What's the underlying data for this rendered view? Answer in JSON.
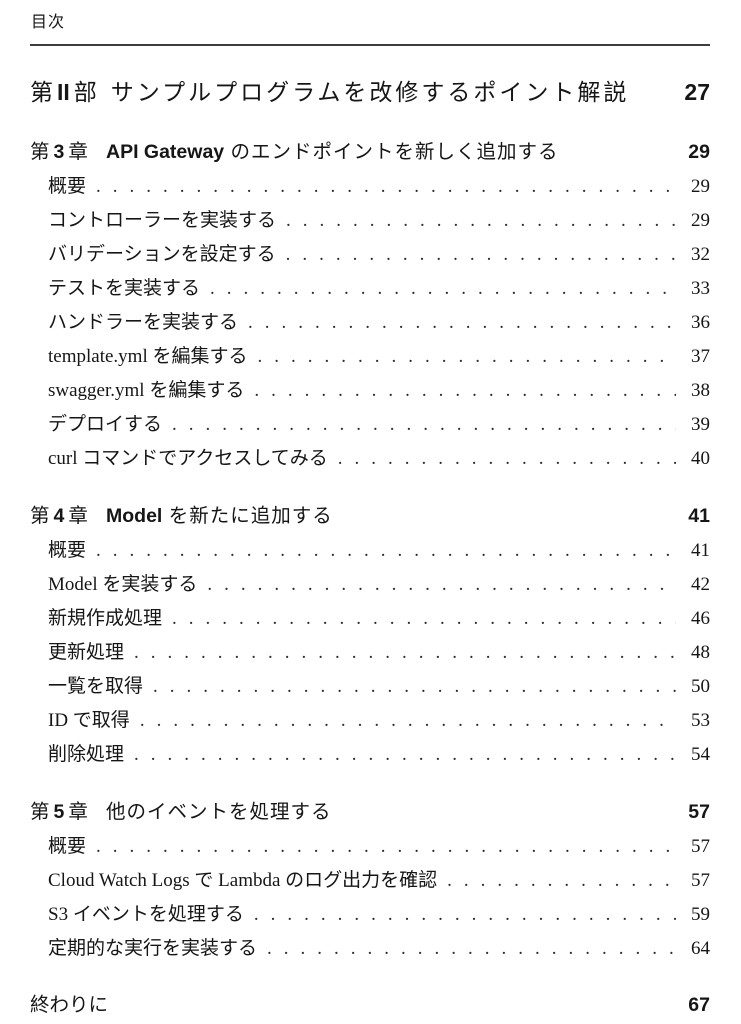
{
  "page": {
    "header": "目次"
  },
  "toc": {
    "part": {
      "label_pre": "第",
      "label_num": "II",
      "label_post": "部",
      "title": "サンプルプログラムを改修するポイント解説",
      "page": "27"
    },
    "chapters": [
      {
        "label_pre": "第",
        "label_num": "3",
        "label_post": "章",
        "title_strong": "API Gateway",
        "title_text": " のエンドポイントを新しく追加する",
        "page": "29",
        "entries": [
          {
            "title": "概要",
            "page": "29"
          },
          {
            "title": "コントローラーを実装する",
            "page": "29"
          },
          {
            "title": "バリデーションを設定する",
            "page": "32"
          },
          {
            "title": "テストを実装する",
            "page": "33"
          },
          {
            "title": "ハンドラーを実装する",
            "page": "36"
          },
          {
            "title": "template.yml を編集する",
            "page": "37"
          },
          {
            "title": "swagger.yml を編集する",
            "page": "38"
          },
          {
            "title": "デプロイする",
            "page": "39"
          },
          {
            "title": "curl コマンドでアクセスしてみる",
            "page": "40"
          }
        ]
      },
      {
        "label_pre": "第",
        "label_num": "4",
        "label_post": "章",
        "title_strong": "Model",
        "title_text": " を新たに追加する",
        "page": "41",
        "entries": [
          {
            "title": "概要",
            "page": "41"
          },
          {
            "title": "Model を実装する",
            "page": "42"
          },
          {
            "title": "新規作成処理",
            "page": "46"
          },
          {
            "title": "更新処理",
            "page": "48"
          },
          {
            "title": "一覧を取得",
            "page": "50"
          },
          {
            "title": "ID で取得",
            "page": "53"
          },
          {
            "title": "削除処理",
            "page": "54"
          }
        ]
      },
      {
        "label_pre": "第",
        "label_num": "5",
        "label_post": "章",
        "title_strong": "",
        "title_text": "他のイベントを処理する",
        "page": "57",
        "entries": [
          {
            "title": "概要",
            "page": "57"
          },
          {
            "title": "Cloud Watch Logs で Lambda のログ出力を確認",
            "page": "57"
          },
          {
            "title": "S3 イベントを処理する",
            "page": "59"
          },
          {
            "title": "定期的な実行を実装する",
            "page": "64"
          }
        ]
      }
    ],
    "closing": {
      "title": "終わりに",
      "page": "67"
    }
  }
}
